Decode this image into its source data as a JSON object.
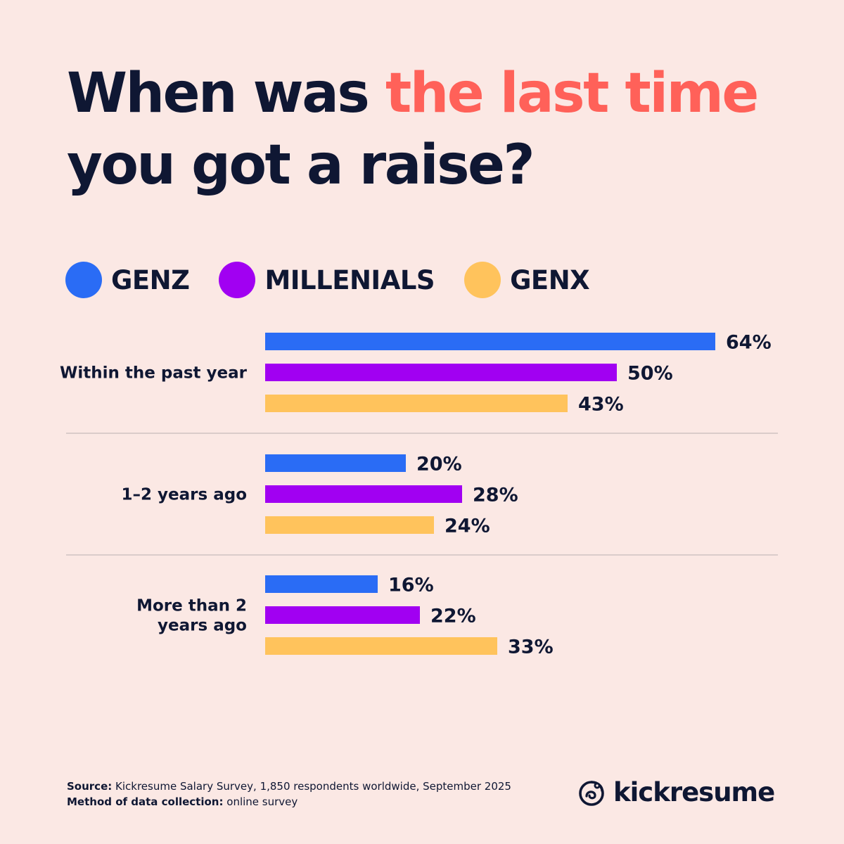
{
  "title": {
    "part1": "When was ",
    "accent": "the last time",
    "part2": "you got a raise?"
  },
  "colors": {
    "background": "#fbe8e4",
    "text": "#0f1733",
    "accent": "#ff6159",
    "divider": "#cfc3c1"
  },
  "chart_data": {
    "type": "bar",
    "orientation": "horizontal",
    "categories": [
      "Within the past year",
      "1–2 years ago",
      "More than 2 years ago"
    ],
    "series": [
      {
        "name": "GENZ",
        "color": "#2a6cf5",
        "values": [
          64,
          20,
          16
        ],
        "labels": [
          "64%",
          "20%",
          "16%"
        ]
      },
      {
        "name": "MILLENIALS",
        "color": "#a100f2",
        "values": [
          50,
          28,
          22
        ],
        "labels": [
          "50%",
          "28%",
          "22%"
        ]
      },
      {
        "name": "GENX",
        "color": "#ffc35c",
        "values": [
          43,
          24,
          33
        ],
        "labels": [
          "43%",
          "24%",
          "33%"
        ]
      }
    ],
    "unit": "%",
    "xlim": [
      0,
      64
    ],
    "legend_position": "top-left",
    "grid": false
  },
  "footer": {
    "source_label": "Source:",
    "source_text": "Kickresume Salary Survey, 1,850 respondents worldwide, September 2025",
    "method_label": "Method of data collection:",
    "method_text": "online survey"
  },
  "brand": {
    "name": "kickresume",
    "icon": "kickresume-logo-icon"
  }
}
